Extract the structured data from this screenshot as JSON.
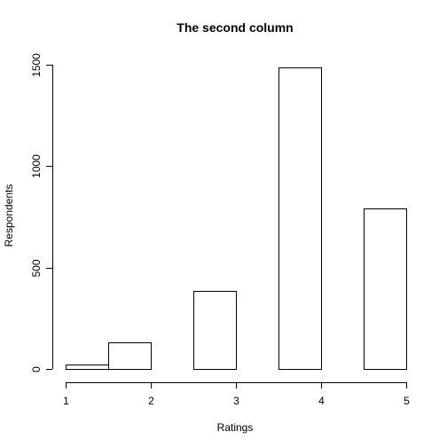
{
  "chart_data": {
    "type": "bar",
    "title": "The second column",
    "xlabel": "Ratings",
    "ylabel": "Respondents",
    "bars": [
      {
        "x0": 1.0,
        "x1": 1.5,
        "value": 20
      },
      {
        "x0": 1.5,
        "x1": 2.0,
        "value": 130
      },
      {
        "x0": 2.0,
        "x1": 2.5,
        "value": 0
      },
      {
        "x0": 2.5,
        "x1": 3.0,
        "value": 385
      },
      {
        "x0": 3.0,
        "x1": 3.5,
        "value": 0
      },
      {
        "x0": 3.5,
        "x1": 4.0,
        "value": 1485
      },
      {
        "x0": 4.0,
        "x1": 4.5,
        "value": 0
      },
      {
        "x0": 4.5,
        "x1": 5.0,
        "value": 790
      }
    ],
    "xticks": [
      "1",
      "2",
      "3",
      "4",
      "5"
    ],
    "yticks": [
      "0",
      "500",
      "1000",
      "1500"
    ],
    "xlim": [
      1,
      5
    ],
    "ylim": [
      0,
      1500
    ],
    "grid": false,
    "colors": {
      "bar_fill": "#ffffff",
      "bar_stroke": "#000000",
      "axis": "#000000"
    }
  }
}
